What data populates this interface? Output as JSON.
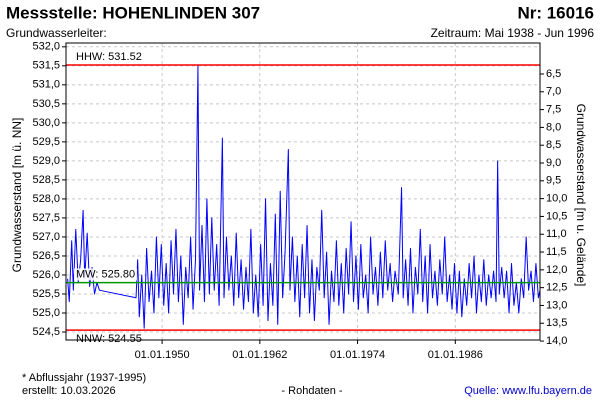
{
  "chart_data": {
    "type": "line",
    "title": "Messstelle: HOHENLINDEN 307",
    "number": "Nr: 16016",
    "subtitle": "Grundwasserleiter:",
    "period": "Zeitraum: Mai 1938 - Jun 1996",
    "ylabel": "Grundwasserstand [m ü. NN]",
    "y2label": "Grundwasserstand [m u. Gelände]",
    "footnote": "* Abflussjahr (1937-1995)",
    "created": "erstellt:  10.03.2026",
    "data_kind": "- Rohdaten -",
    "source": "Quelle: www.lfu.bayern.de",
    "grid": true,
    "xlim": [
      1938.2,
      1996.4
    ],
    "xticks": [
      {
        "value": 1950,
        "label": "01.01.1950"
      },
      {
        "value": 1962,
        "label": "01.01.1962"
      },
      {
        "value": 1974,
        "label": "01.01.1974"
      },
      {
        "value": 1986,
        "label": "01.01.1986"
      }
    ],
    "ylim": [
      524.29,
      532.1
    ],
    "yticks": [
      {
        "value": 524.5,
        "label": "524,5"
      },
      {
        "value": 525,
        "label": "525,0"
      },
      {
        "value": 525.5,
        "label": "525,5"
      },
      {
        "value": 526,
        "label": "526,0"
      },
      {
        "value": 526.5,
        "label": "526,5"
      },
      {
        "value": 527,
        "label": "527,0"
      },
      {
        "value": 527.5,
        "label": "527,5"
      },
      {
        "value": 528,
        "label": "528,0"
      },
      {
        "value": 528.5,
        "label": "528,5"
      },
      {
        "value": 529,
        "label": "529,0"
      },
      {
        "value": 529.5,
        "label": "529,5"
      },
      {
        "value": 530,
        "label": "530,0"
      },
      {
        "value": 530.5,
        "label": "530,5"
      },
      {
        "value": 531,
        "label": "531,0"
      },
      {
        "value": 531.5,
        "label": "531,5"
      },
      {
        "value": 532,
        "label": "532,0"
      }
    ],
    "y2lim": [
      13.97,
      5.63
    ],
    "y2ticks": [
      {
        "value": 6.5,
        "label": "6,5"
      },
      {
        "value": 7,
        "label": "7,0"
      },
      {
        "value": 7.5,
        "label": "7,5"
      },
      {
        "value": 8,
        "label": "8,0"
      },
      {
        "value": 8.5,
        "label": "8,5"
      },
      {
        "value": 9,
        "label": "9,0"
      },
      {
        "value": 9.5,
        "label": "9,5"
      },
      {
        "value": 10,
        "label": "10,0"
      },
      {
        "value": 10.5,
        "label": "10,5"
      },
      {
        "value": 11,
        "label": "11,0"
      },
      {
        "value": 11.5,
        "label": "11,5"
      },
      {
        "value": 12,
        "label": "12,0"
      },
      {
        "value": 12.5,
        "label": "12,5"
      },
      {
        "value": 13,
        "label": "13,0"
      },
      {
        "value": 13.5,
        "label": "13,5"
      },
      {
        "value": 14,
        "label": "14,0"
      }
    ],
    "reference_lines": [
      {
        "label": "HHW: 531.52",
        "value": 531.52,
        "color": "#ff0000"
      },
      {
        "label": "MW: 525.80",
        "value": 525.8,
        "color": "#009900"
      },
      {
        "label": "NNW: 524.55",
        "value": 524.55,
        "color": "#ff0000"
      }
    ],
    "x": [
      1938.4,
      1938.6,
      1938.9,
      1939.1,
      1939.4,
      1939.7,
      1940.0,
      1940.3,
      1940.5,
      1940.8,
      1941.1,
      1941.4,
      1941.7,
      1942.0,
      1942.3,
      1946.8,
      1947.0,
      1947.2,
      1947.5,
      1947.8,
      1948.1,
      1948.4,
      1948.7,
      1949.0,
      1949.3,
      1949.6,
      1949.9,
      1950.2,
      1950.5,
      1950.8,
      1951.1,
      1951.4,
      1951.7,
      1952.0,
      1952.3,
      1952.6,
      1952.9,
      1953.2,
      1953.5,
      1953.8,
      1954.1,
      1954.4,
      1954.6,
      1954.9,
      1955.2,
      1955.5,
      1955.8,
      1956.1,
      1956.4,
      1956.7,
      1957.0,
      1957.4,
      1957.6,
      1957.9,
      1958.2,
      1958.5,
      1958.8,
      1959.1,
      1959.4,
      1959.7,
      1960.0,
      1960.3,
      1960.6,
      1960.9,
      1961.2,
      1961.5,
      1961.8,
      1962.1,
      1962.4,
      1962.7,
      1963.0,
      1963.3,
      1963.6,
      1963.9,
      1964.2,
      1964.5,
      1964.8,
      1965.1,
      1965.5,
      1965.7,
      1966.0,
      1966.3,
      1966.6,
      1966.9,
      1967.2,
      1967.5,
      1967.8,
      1968.1,
      1968.4,
      1968.7,
      1969.0,
      1969.3,
      1969.6,
      1969.9,
      1970.2,
      1970.5,
      1970.8,
      1971.1,
      1971.4,
      1971.7,
      1972.0,
      1972.3,
      1972.6,
      1972.9,
      1973.2,
      1973.5,
      1973.8,
      1974.1,
      1974.4,
      1974.7,
      1975.0,
      1975.3,
      1975.6,
      1975.9,
      1976.2,
      1976.5,
      1976.8,
      1977.1,
      1977.4,
      1977.7,
      1978.0,
      1978.3,
      1978.6,
      1979.0,
      1979.4,
      1979.6,
      1979.9,
      1980.2,
      1980.5,
      1980.8,
      1981.1,
      1981.4,
      1981.7,
      1982.0,
      1982.3,
      1982.6,
      1982.9,
      1983.2,
      1983.5,
      1983.8,
      1984.1,
      1984.4,
      1984.7,
      1985.0,
      1985.3,
      1985.6,
      1985.9,
      1986.2,
      1986.5,
      1986.8,
      1987.1,
      1987.4,
      1987.7,
      1988.0,
      1988.3,
      1988.6,
      1988.9,
      1989.2,
      1989.5,
      1989.8,
      1990.1,
      1990.4,
      1990.7,
      1991.0,
      1991.2,
      1991.4,
      1991.7,
      1992.0,
      1992.3,
      1992.6,
      1992.9,
      1993.2,
      1993.5,
      1993.8,
      1994.1,
      1994.4,
      1994.7,
      1995.0,
      1995.3,
      1995.6,
      1995.9,
      1996.2,
      1996.4
    ],
    "series": [
      {
        "color": "#0000ff",
        "values": [
          525.9,
          525.3,
          526.9,
          525.6,
          527.2,
          525.8,
          526.4,
          527.7,
          525.9,
          527.1,
          525.7,
          526.2,
          525.5,
          525.8,
          525.6,
          525.4,
          526.4,
          524.9,
          526.0,
          524.6,
          526.7,
          525.3,
          526.1,
          525.0,
          527.0,
          525.4,
          526.8,
          525.2,
          526.3,
          525.0,
          526.9,
          525.5,
          527.2,
          525.3,
          526.5,
          524.7,
          526.2,
          525.4,
          527.0,
          525.1,
          526.4,
          531.5,
          525.6,
          527.3,
          525.3,
          528.0,
          525.5,
          527.5,
          525.6,
          526.8,
          525.2,
          529.6,
          525.4,
          527.0,
          525.6,
          526.5,
          525.2,
          527.1,
          525.4,
          526.4,
          525.1,
          526.2,
          525.3,
          527.2,
          525.0,
          526.0,
          524.9,
          526.8,
          525.2,
          528.0,
          524.8,
          526.3,
          525.2,
          527.6,
          524.7,
          528.2,
          525.4,
          526.6,
          529.3,
          525.6,
          527.0,
          525.3,
          526.5,
          524.9,
          526.8,
          525.4,
          527.3,
          525.0,
          526.4,
          524.8,
          526.2,
          525.6,
          527.7,
          525.4,
          526.6,
          524.7,
          526.1,
          525.3,
          526.9,
          525.2,
          526.3,
          525.0,
          526.7,
          525.5,
          527.4,
          525.3,
          526.5,
          525.1,
          526.8,
          525.4,
          526.0,
          525.0,
          527.0,
          525.5,
          526.2,
          525.2,
          526.6,
          525.4,
          526.9,
          525.6,
          526.3,
          525.3,
          526.1,
          525.5,
          528.3,
          525.4,
          526.4,
          525.2,
          526.7,
          525.0,
          526.2,
          525.5,
          527.2,
          525.3,
          526.5,
          525.0,
          526.8,
          525.4,
          526.1,
          525.2,
          526.4,
          525.5,
          527.0,
          525.3,
          526.0,
          525.1,
          526.3,
          525.0,
          526.1,
          524.9,
          525.9,
          525.2,
          526.3,
          525.4,
          526.5,
          525.0,
          526.0,
          525.3,
          526.4,
          525.2,
          526.0,
          525.4,
          526.1,
          525.3,
          529.0,
          525.5,
          526.2,
          525.4,
          526.1,
          525.0,
          526.3,
          525.2,
          525.8,
          525.0,
          525.9,
          525.4,
          527.0,
          525.6,
          526.1,
          525.3,
          526.3,
          525.4,
          525.6
        ]
      }
    ]
  }
}
